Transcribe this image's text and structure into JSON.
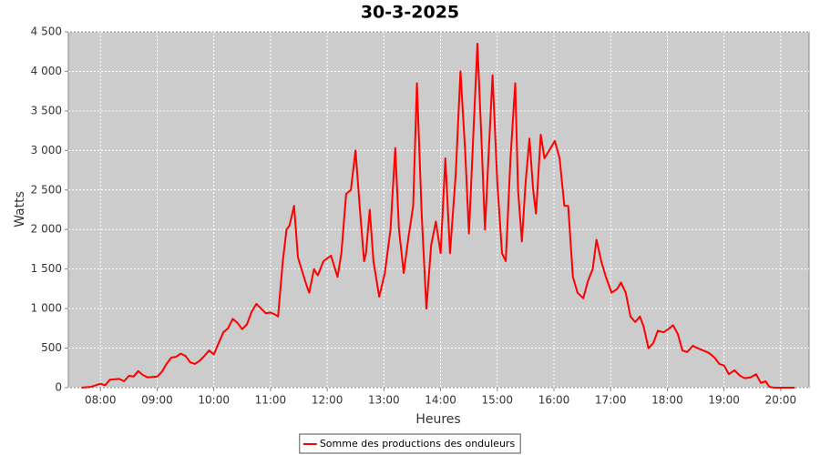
{
  "chart_data": {
    "type": "line",
    "title": "30-3-2025",
    "x_label": "Heures",
    "y_label": "Watts",
    "x": [
      "07:40",
      "07:50",
      "08:00",
      "08:05",
      "08:10",
      "08:20",
      "08:25",
      "08:30",
      "08:35",
      "08:40",
      "08:45",
      "08:50",
      "09:00",
      "09:05",
      "09:10",
      "09:15",
      "09:20",
      "09:25",
      "09:30",
      "09:35",
      "09:40",
      "09:45",
      "09:50",
      "09:55",
      "10:00",
      "10:05",
      "10:10",
      "10:15",
      "10:20",
      "10:25",
      "10:30",
      "10:35",
      "10:40",
      "10:45",
      "10:50",
      "10:55",
      "11:00",
      "11:04",
      "11:08",
      "11:13",
      "11:17",
      "11:20",
      "11:25",
      "11:29",
      "11:34",
      "11:38",
      "11:41",
      "11:46",
      "11:50",
      "11:56",
      "12:04",
      "12:11",
      "12:15",
      "12:20",
      "12:25",
      "12:30",
      "12:35",
      "12:39",
      "12:41",
      "12:45",
      "12:49",
      "12:55",
      "13:01",
      "13:07",
      "13:12",
      "13:16",
      "13:21",
      "13:26",
      "13:31",
      "13:35",
      "13:40",
      "13:45",
      "13:50",
      "13:55",
      "14:00",
      "14:05",
      "14:10",
      "14:16",
      "14:21",
      "14:26",
      "14:30",
      "14:35",
      "14:39",
      "14:43",
      "14:47",
      "14:51",
      "14:55",
      "15:00",
      "15:05",
      "15:09",
      "15:14",
      "15:19",
      "15:22",
      "15:26",
      "15:30",
      "15:34",
      "15:38",
      "15:41",
      "15:46",
      "15:50",
      "15:55",
      "16:01",
      "16:06",
      "16:11",
      "16:15",
      "16:20",
      "16:25",
      "16:31",
      "16:36",
      "16:41",
      "16:45",
      "16:50",
      "16:55",
      "17:01",
      "17:07",
      "17:11",
      "17:16",
      "17:21",
      "17:26",
      "17:31",
      "17:35",
      "17:40",
      "17:45",
      "17:50",
      "17:56",
      "18:01",
      "18:06",
      "18:11",
      "18:16",
      "18:21",
      "18:27",
      "18:32",
      "18:38",
      "18:44",
      "18:50",
      "18:55",
      "19:00",
      "19:05",
      "19:11",
      "19:17",
      "19:22",
      "19:28",
      "19:34",
      "19:39",
      "19:44",
      "19:48",
      "19:53",
      "20:15"
    ],
    "series": [
      {
        "name": "Somme des productions des onduleurs",
        "color": "#ff0000",
        "values": [
          0,
          10,
          50,
          30,
          100,
          110,
          80,
          150,
          140,
          210,
          160,
          130,
          140,
          200,
          300,
          380,
          390,
          430,
          400,
          320,
          300,
          340,
          400,
          470,
          420,
          560,
          700,
          750,
          870,
          820,
          740,
          800,
          960,
          1060,
          1000,
          940,
          950,
          930,
          900,
          1600,
          2000,
          2050,
          2300,
          1650,
          1450,
          1300,
          1200,
          1500,
          1420,
          1600,
          1670,
          1400,
          1700,
          2450,
          2500,
          3000,
          2200,
          1600,
          1700,
          2250,
          1600,
          1150,
          1450,
          2000,
          3030,
          2000,
          1450,
          1900,
          2300,
          3850,
          2200,
          1000,
          1800,
          2100,
          1700,
          2900,
          1700,
          2700,
          4000,
          3000,
          1950,
          3300,
          4350,
          3200,
          2000,
          3000,
          3950,
          2600,
          1700,
          1600,
          2900,
          3850,
          2500,
          1850,
          2600,
          3150,
          2500,
          2200,
          3200,
          2900,
          3000,
          3120,
          2900,
          2300,
          2300,
          1400,
          1200,
          1130,
          1350,
          1500,
          1870,
          1600,
          1400,
          1200,
          1250,
          1330,
          1200,
          900,
          830,
          900,
          770,
          500,
          560,
          720,
          700,
          740,
          790,
          680,
          470,
          450,
          530,
          500,
          470,
          440,
          380,
          300,
          280,
          170,
          220,
          150,
          120,
          130,
          170,
          60,
          80,
          10,
          0,
          0
        ]
      }
    ],
    "xlim": [
      "07:26",
      "20:30"
    ],
    "xticks": [
      "08:00",
      "09:00",
      "10:00",
      "11:00",
      "12:00",
      "13:00",
      "14:00",
      "15:00",
      "16:00",
      "17:00",
      "18:00",
      "19:00",
      "20:00"
    ],
    "ylim": [
      0,
      4500
    ],
    "yticks": [
      0,
      500,
      {
        "value": 1000,
        "label": "1 000"
      },
      {
        "value": 1500,
        "label": "1 500"
      },
      {
        "value": 2000,
        "label": "2 000"
      },
      {
        "value": 2500,
        "label": "2 500"
      },
      {
        "value": 3000,
        "label": "3 000"
      },
      {
        "value": 3500,
        "label": "3 500"
      },
      {
        "value": 4000,
        "label": "4 000"
      },
      {
        "value": 4500,
        "label": "4 500"
      }
    ],
    "grid": true,
    "legend": "bottom"
  }
}
